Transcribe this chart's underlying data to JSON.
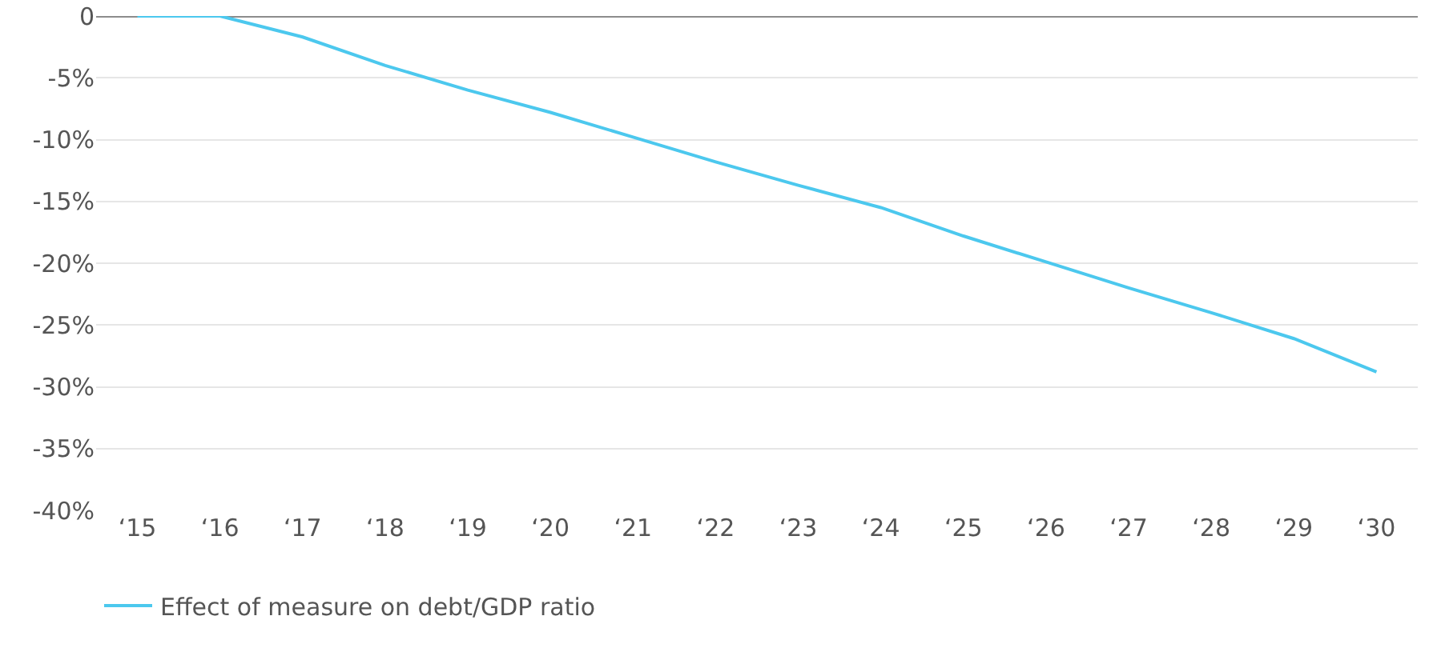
{
  "chart_data": {
    "type": "line",
    "categories": [
      "‘15",
      "‘16",
      "‘17",
      "‘18",
      "‘19",
      "‘20",
      "‘21",
      "‘22",
      "‘23",
      "‘24",
      "‘25",
      "‘26",
      "‘27",
      "‘28",
      "‘29",
      "‘30"
    ],
    "series": [
      {
        "name": "Effect of measure on debt/GDP ratio",
        "color": "#4cc8ee",
        "values": [
          0,
          0,
          -1.7,
          -4,
          -6,
          -7.8,
          -9.8,
          -11.8,
          -13.7,
          -15.5,
          -17.8,
          -19.9,
          -22,
          -24,
          -26.1,
          -28.8
        ]
      }
    ],
    "ylim": [
      -40,
      0
    ],
    "yticks": [
      {
        "value": 0,
        "label": "0"
      },
      {
        "value": -5,
        "label": "-5%"
      },
      {
        "value": -10,
        "label": "-10%"
      },
      {
        "value": -15,
        "label": "-15%"
      },
      {
        "value": -20,
        "label": "-20%"
      },
      {
        "value": -25,
        "label": "-25%"
      },
      {
        "value": -30,
        "label": "-30%"
      },
      {
        "value": -35,
        "label": "-35%"
      },
      {
        "value": -40,
        "label": "-40%"
      }
    ],
    "ref_lines": [
      {
        "axis": "y",
        "value": 0,
        "color": "#8c8c8c"
      }
    ],
    "grid": "y",
    "legend": "bottom left",
    "marker": "none",
    "line_style": "solid"
  }
}
